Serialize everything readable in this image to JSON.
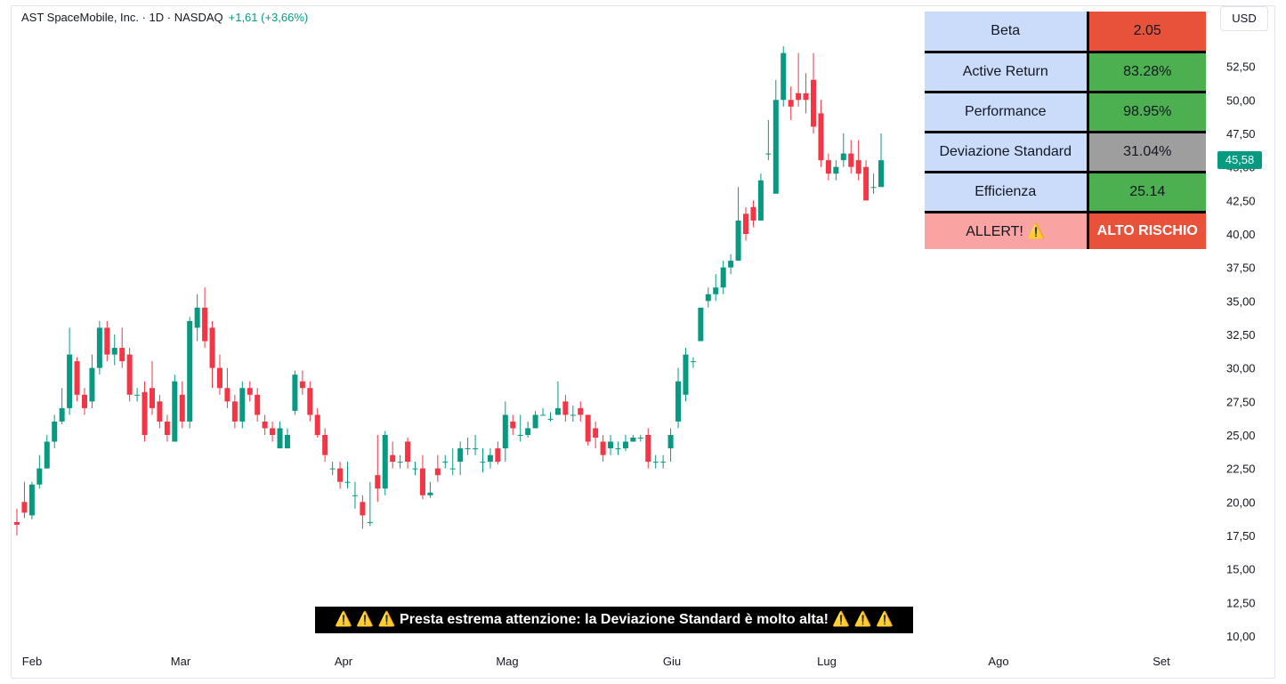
{
  "legend": {
    "symbol": "AST SpaceMobile, Inc. · 1D · NASDAQ",
    "change": "+1,61 (+3,66%)"
  },
  "currency": "USD",
  "last_price": "45,58",
  "colors": {
    "up": "#089981",
    "down": "#f23645",
    "red_cell": "#e8523a",
    "green_cell": "#4caf50",
    "gray_cell": "#9e9e9e",
    "alert_label": "#f9a3a3",
    "label_cell": "#cbdcfa"
  },
  "stats": [
    {
      "label": "Beta",
      "value": "2.05",
      "color": "#e8523a"
    },
    {
      "label": "Active Return",
      "value": "83.28%",
      "color": "#4caf50"
    },
    {
      "label": "Performance",
      "value": "98.95%",
      "color": "#4caf50"
    },
    {
      "label": "Deviazione Standard",
      "value": "31.04%",
      "color": "#9e9e9e"
    },
    {
      "label": "Efficienza",
      "value": "25.14",
      "color": "#4caf50"
    }
  ],
  "alert": {
    "label": "ALLERT! ⚠️",
    "value": "ALTO RISCHIO"
  },
  "warning": "⚠️ ⚠️ ⚠️ Presta estrema attenzione: la Deviazione Standard è molto alta! ⚠️ ⚠️ ⚠️",
  "chart_data": {
    "type": "candlestick",
    "y_ticks": [
      "10,00",
      "12,50",
      "15,00",
      "17,50",
      "20,00",
      "22,50",
      "25,00",
      "27,50",
      "30,00",
      "32,50",
      "35,00",
      "37,50",
      "40,00",
      "42,50",
      "45,00",
      "47,50",
      "50,00",
      "52,50"
    ],
    "ylim": [
      10,
      55
    ],
    "x_ticks": [
      "Feb",
      "Mar",
      "Apr",
      "Mag",
      "Giu",
      "Lug",
      "Ago",
      "Set"
    ],
    "candles": [
      [
        18.5,
        18.3,
        19.5,
        17.5
      ],
      [
        20,
        19.2,
        21.5,
        18.8
      ],
      [
        19,
        21.3,
        21.5,
        18.7
      ],
      [
        21.3,
        22.5,
        23.5,
        21
      ],
      [
        22.5,
        24.5,
        25,
        22.5
      ],
      [
        24.5,
        26,
        26.5,
        24
      ],
      [
        26,
        27,
        28.5,
        25.8
      ],
      [
        27,
        31,
        33,
        26.5
      ],
      [
        30.5,
        28,
        30.8,
        27.5
      ],
      [
        28,
        27,
        28.5,
        26.5
      ],
      [
        27.5,
        30,
        31,
        27
      ],
      [
        30,
        33,
        33.5,
        29.5
      ],
      [
        33,
        31,
        33.5,
        30.5
      ],
      [
        31,
        31.5,
        32.5,
        30.2
      ],
      [
        31.5,
        30.5,
        33,
        30
      ],
      [
        31,
        28,
        31.5,
        27.5
      ],
      [
        28,
        28,
        28.5,
        27.5
      ],
      [
        28.2,
        25,
        29,
        24.5
      ],
      [
        28.5,
        27,
        30.5,
        26.5
      ],
      [
        27.5,
        26,
        28,
        25.5
      ],
      [
        26,
        25,
        26.5,
        24.5
      ],
      [
        24.5,
        29,
        29.5,
        24.5
      ],
      [
        28,
        26,
        29,
        25.5
      ],
      [
        26,
        33.5,
        33.8,
        25.5
      ],
      [
        33,
        34.5,
        35.5,
        32
      ],
      [
        34.5,
        32,
        36,
        31.5
      ],
      [
        33,
        30,
        33.5,
        28.5
      ],
      [
        30,
        28.5,
        31,
        28
      ],
      [
        28.5,
        27.5,
        30,
        27
      ],
      [
        27.5,
        26,
        28,
        25.5
      ],
      [
        26,
        28.5,
        29,
        25.5
      ],
      [
        28.5,
        28,
        29,
        27.5
      ],
      [
        28,
        26.5,
        28.5,
        26
      ],
      [
        26,
        25.5,
        26.5,
        25
      ],
      [
        25.5,
        25,
        26,
        24.5
      ],
      [
        24,
        25.5,
        26,
        24
      ],
      [
        24,
        25,
        25.5,
        24
      ],
      [
        26.8,
        29.5,
        29.8,
        26.5
      ],
      [
        29,
        28.5,
        29.8,
        28
      ],
      [
        28.5,
        26.5,
        29,
        26
      ],
      [
        26.5,
        25,
        27,
        24.8
      ],
      [
        25,
        23.5,
        25.5,
        23
      ],
      [
        22.5,
        22.5,
        23,
        22
      ],
      [
        22.5,
        21.5,
        23,
        21
      ],
      [
        21.5,
        21.5,
        23,
        21
      ],
      [
        20.5,
        20.5,
        21.5,
        19.5
      ],
      [
        20,
        19,
        20.5,
        18
      ],
      [
        18.5,
        18.5,
        21.5,
        18.2
      ],
      [
        22,
        21,
        25,
        20
      ],
      [
        21,
        25,
        25.3,
        20.5
      ],
      [
        23.5,
        23,
        24.5,
        22.5
      ],
      [
        23,
        23,
        23.5,
        22.5
      ],
      [
        24.5,
        23,
        24.8,
        22.5
      ],
      [
        22.5,
        22.5,
        23,
        22
      ],
      [
        22.5,
        20.5,
        23.5,
        20.2
      ],
      [
        20.5,
        20.7,
        21.5,
        20.3
      ],
      [
        22.5,
        22,
        23.5,
        21.5
      ],
      [
        23,
        23,
        23.5,
        22.5
      ],
      [
        22.5,
        22.5,
        24,
        22
      ],
      [
        23,
        24,
        24.5,
        22
      ],
      [
        24,
        24,
        24.8,
        23.5
      ],
      [
        24,
        24,
        25,
        23.5
      ],
      [
        23,
        23,
        24,
        22.2
      ],
      [
        23,
        23.5,
        24,
        22.5
      ],
      [
        24,
        23,
        24.5,
        22.8
      ],
      [
        24,
        26.5,
        27.5,
        23
      ],
      [
        26,
        25.5,
        26.5,
        25
      ],
      [
        25,
        25,
        26.5,
        24.5
      ],
      [
        25,
        25.5,
        26,
        24.8
      ],
      [
        25.5,
        26.5,
        26.8,
        25.5
      ],
      [
        26.5,
        26.5,
        27,
        26.5
      ],
      [
        26.2,
        26.2,
        26.7,
        26
      ],
      [
        26.5,
        27,
        29,
        26.5
      ],
      [
        27.5,
        26.5,
        28,
        26
      ],
      [
        26.5,
        26.5,
        27.2,
        26
      ],
      [
        27,
        26.5,
        27.5,
        26
      ],
      [
        26.5,
        24.5,
        26.5,
        24.2
      ],
      [
        25.5,
        24.8,
        26,
        24
      ],
      [
        24.5,
        23.5,
        25,
        23
      ],
      [
        24,
        24.5,
        25,
        23.5
      ],
      [
        24,
        24,
        24.5,
        23.5
      ],
      [
        24,
        24.5,
        25,
        23.8
      ],
      [
        24.5,
        24.8,
        25,
        24.5
      ],
      [
        24.8,
        24.8,
        25,
        24.5
      ],
      [
        25,
        23,
        25.5,
        22.5
      ],
      [
        23,
        23,
        23.5,
        22.5
      ],
      [
        23,
        23,
        23.5,
        22.5
      ],
      [
        24,
        25,
        25.5,
        23
      ],
      [
        26,
        29,
        30,
        25.5
      ],
      [
        28,
        31,
        31.5,
        27.5
      ],
      [
        30.5,
        30.5,
        30.8,
        30
      ],
      [
        32,
        34.5,
        34.5,
        32
      ],
      [
        35,
        35.5,
        36,
        34.5
      ],
      [
        35.5,
        36,
        37,
        35
      ],
      [
        36,
        37.5,
        38,
        35.5
      ],
      [
        37.5,
        38,
        38.5,
        37
      ],
      [
        38,
        41,
        43.5,
        38
      ],
      [
        41.5,
        40,
        42,
        39.5
      ],
      [
        42,
        41,
        42.5,
        40.5
      ],
      [
        41,
        44,
        44.5,
        41
      ],
      [
        46,
        46,
        48.5,
        45.5
      ],
      [
        43,
        50,
        51.5,
        43
      ],
      [
        50,
        53.5,
        54,
        49.5
      ],
      [
        50,
        49.5,
        51,
        48.5
      ],
      [
        50.5,
        50,
        53.5,
        49.5
      ],
      [
        50.5,
        50,
        52,
        49
      ],
      [
        51.5,
        48,
        53.5,
        47.5
      ],
      [
        49,
        45.5,
        50,
        45
      ],
      [
        45.5,
        44.5,
        46,
        44
      ],
      [
        44.5,
        45,
        45.5,
        44
      ],
      [
        45.5,
        46,
        47.5,
        45
      ],
      [
        46,
        45,
        47,
        44.5
      ],
      [
        45.5,
        44.5,
        47,
        44
      ],
      [
        45,
        42.5,
        45.5,
        42.5
      ],
      [
        43.5,
        43.5,
        44.5,
        43
      ],
      [
        43.5,
        45.5,
        47.5,
        43.5
      ]
    ]
  }
}
